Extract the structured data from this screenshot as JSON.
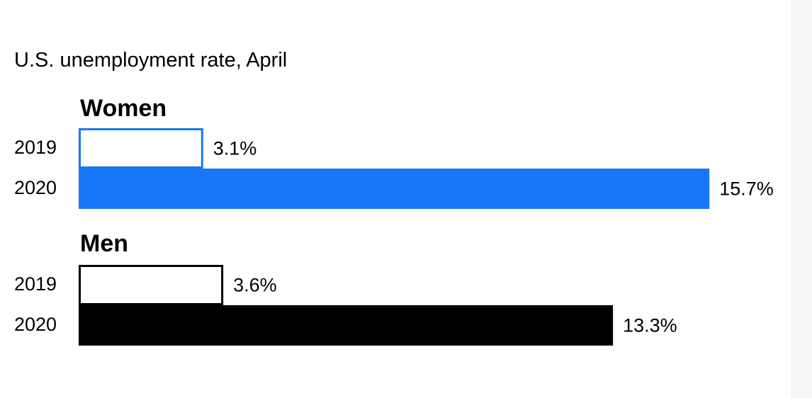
{
  "chart_data": {
    "type": "bar",
    "title": "U.S. unemployment rate, April",
    "unit": "%",
    "groups": [
      {
        "name": "Women",
        "color": "#1877f7",
        "bars": [
          {
            "category": "2019",
            "value": 3.1,
            "label": "3.1%",
            "style": "outline"
          },
          {
            "category": "2020",
            "value": 15.7,
            "label": "15.7%",
            "style": "filled"
          }
        ]
      },
      {
        "name": "Men",
        "color": "#000000",
        "bars": [
          {
            "category": "2019",
            "value": 3.6,
            "label": "3.6%",
            "style": "outline"
          },
          {
            "category": "2020",
            "value": 13.3,
            "label": "13.3%",
            "style": "filled"
          }
        ]
      }
    ]
  }
}
